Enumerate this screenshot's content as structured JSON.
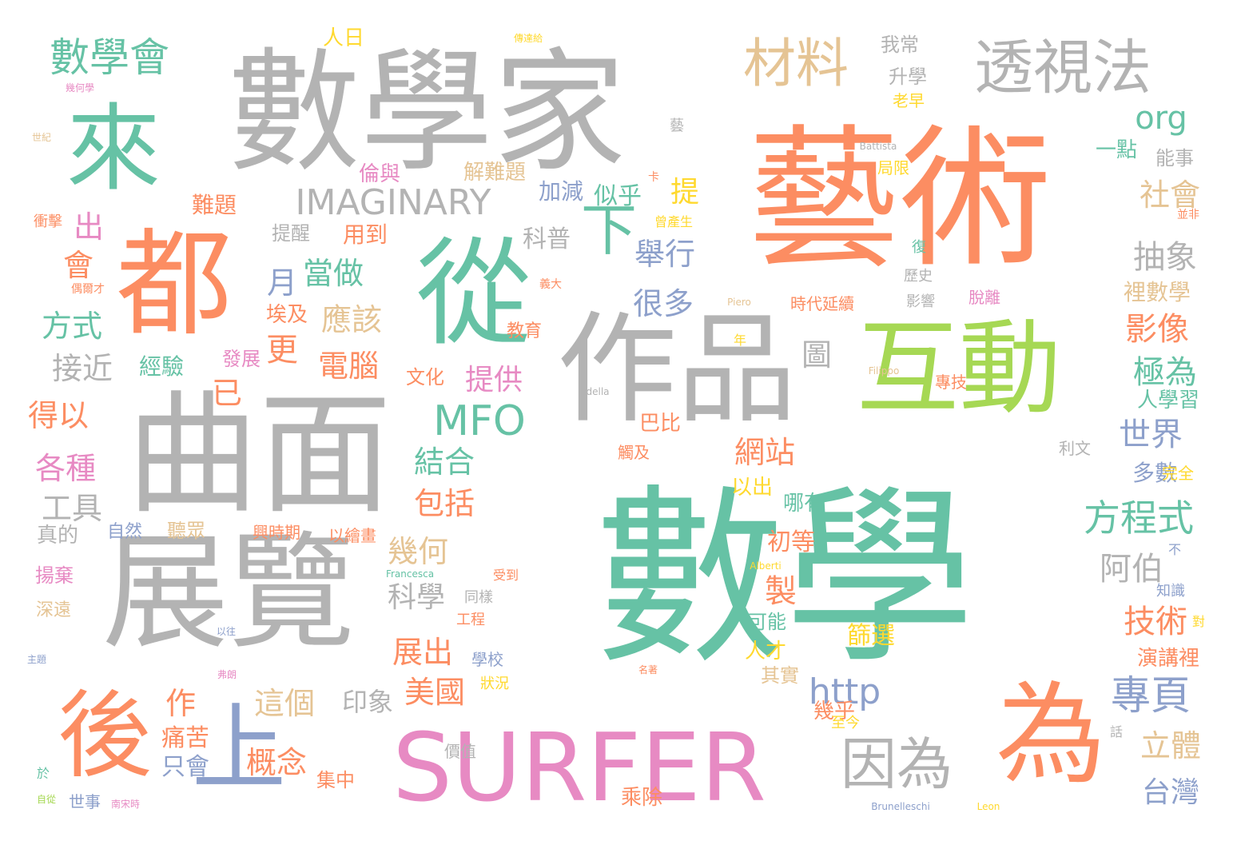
{
  "palette": {
    "teal": "#66c2a5",
    "orange": "#fc8d62",
    "blue": "#8da0cb",
    "pink": "#e78ac3",
    "green": "#a6d854",
    "yellow": "#ffd92f",
    "tan": "#e5c494",
    "gray": "#b3b3b3"
  },
  "words": [
    {
      "text": "數學",
      "color": "teal"
    },
    {
      "text": "藝術",
      "color": "orange"
    },
    {
      "text": "數學家",
      "color": "gray"
    },
    {
      "text": "曲面",
      "color": "gray"
    },
    {
      "text": "展覽",
      "color": "gray"
    },
    {
      "text": "都",
      "color": "orange"
    },
    {
      "text": "從",
      "color": "teal"
    },
    {
      "text": "來",
      "color": "teal"
    },
    {
      "text": "作品",
      "color": "gray"
    },
    {
      "text": "互動",
      "color": "green"
    },
    {
      "text": "為",
      "color": "orange"
    },
    {
      "text": "SURFER",
      "color": "pink"
    },
    {
      "text": "後",
      "color": "orange"
    },
    {
      "text": "上",
      "color": "blue"
    },
    {
      "text": "透視法",
      "color": "gray"
    },
    {
      "text": "材料",
      "color": "tan"
    },
    {
      "text": "數學會",
      "color": "teal"
    },
    {
      "text": "IMAGINARY",
      "color": "gray"
    },
    {
      "text": "MFO",
      "color": "teal"
    },
    {
      "text": "因為",
      "color": "gray"
    },
    {
      "text": "專頁",
      "color": "blue"
    },
    {
      "text": "方程式",
      "color": "teal"
    },
    {
      "text": "下",
      "color": "teal"
    },
    {
      "text": "org",
      "color": "teal"
    },
    {
      "text": "http",
      "color": "blue"
    },
    {
      "text": "舉行",
      "color": "blue"
    },
    {
      "text": "社會",
      "color": "tan"
    },
    {
      "text": "抽象",
      "color": "gray"
    },
    {
      "text": "影像",
      "color": "orange"
    },
    {
      "text": "極為",
      "color": "teal"
    },
    {
      "text": "世界",
      "color": "blue"
    },
    {
      "text": "阿伯",
      "color": "gray"
    },
    {
      "text": "技術",
      "color": "orange"
    },
    {
      "text": "立體",
      "color": "tan"
    },
    {
      "text": "台灣",
      "color": "blue"
    },
    {
      "text": "網站",
      "color": "orange"
    },
    {
      "text": "結合",
      "color": "teal"
    },
    {
      "text": "包括",
      "color": "orange"
    },
    {
      "text": "幾何",
      "color": "tan"
    },
    {
      "text": "科學",
      "color": "gray"
    },
    {
      "text": "展出",
      "color": "orange"
    },
    {
      "text": "美國",
      "color": "orange"
    },
    {
      "text": "這個",
      "color": "tan"
    },
    {
      "text": "概念",
      "color": "orange"
    },
    {
      "text": "當做",
      "color": "teal"
    },
    {
      "text": "應該",
      "color": "tan"
    },
    {
      "text": "電腦",
      "color": "orange"
    },
    {
      "text": "很多",
      "color": "blue"
    },
    {
      "text": "提供",
      "color": "pink"
    },
    {
      "text": "接近",
      "color": "gray"
    },
    {
      "text": "方式",
      "color": "teal"
    },
    {
      "text": "得以",
      "color": "orange"
    },
    {
      "text": "各種",
      "color": "pink"
    },
    {
      "text": "工具",
      "color": "gray"
    },
    {
      "text": "月",
      "color": "blue"
    },
    {
      "text": "更",
      "color": "orange"
    },
    {
      "text": "已",
      "color": "orange"
    },
    {
      "text": "出",
      "color": "pink"
    },
    {
      "text": "會",
      "color": "orange"
    },
    {
      "text": "作",
      "color": "orange"
    },
    {
      "text": "製",
      "color": "orange"
    },
    {
      "text": "提",
      "color": "yellow"
    },
    {
      "text": "圖",
      "color": "gray"
    },
    {
      "text": "痛苦",
      "color": "orange"
    },
    {
      "text": "只會",
      "color": "blue"
    },
    {
      "text": "印象",
      "color": "gray"
    },
    {
      "text": "人學習",
      "color": "teal"
    },
    {
      "text": "多數",
      "color": "blue"
    },
    {
      "text": "演講裡",
      "color": "orange"
    },
    {
      "text": "裡數學",
      "color": "tan"
    },
    {
      "text": "初等",
      "color": "orange"
    },
    {
      "text": "篩選",
      "color": "yellow"
    },
    {
      "text": "科普",
      "color": "gray"
    },
    {
      "text": "似乎",
      "color": "teal"
    },
    {
      "text": "加減",
      "color": "blue"
    },
    {
      "text": "解難題",
      "color": "tan"
    },
    {
      "text": "倫與",
      "color": "pink"
    },
    {
      "text": "難題",
      "color": "orange"
    },
    {
      "text": "用到",
      "color": "orange"
    },
    {
      "text": "提醒",
      "color": "gray"
    },
    {
      "text": "經驗",
      "color": "teal"
    },
    {
      "text": "埃及",
      "color": "orange"
    },
    {
      "text": "發展",
      "color": "pink"
    },
    {
      "text": "文化",
      "color": "orange"
    },
    {
      "text": "教育",
      "color": "orange"
    },
    {
      "text": "巴比",
      "color": "orange"
    },
    {
      "text": "以出",
      "color": "yellow"
    },
    {
      "text": "哪有",
      "color": "teal"
    },
    {
      "text": "可能",
      "color": "teal"
    },
    {
      "text": "人才",
      "color": "yellow"
    },
    {
      "text": "其實",
      "color": "tan"
    },
    {
      "text": "幾乎",
      "color": "orange"
    },
    {
      "text": "乘除",
      "color": "orange"
    },
    {
      "text": "集中",
      "color": "orange"
    },
    {
      "text": "聽眾",
      "color": "tan"
    },
    {
      "text": "以繪畫",
      "color": "orange"
    },
    {
      "text": "興時期",
      "color": "orange"
    },
    {
      "text": "自然",
      "color": "blue"
    },
    {
      "text": "真的",
      "color": "gray"
    },
    {
      "text": "揚棄",
      "color": "pink"
    },
    {
      "text": "深遠",
      "color": "tan"
    },
    {
      "text": "世事",
      "color": "blue"
    },
    {
      "text": "工程",
      "color": "orange"
    },
    {
      "text": "學校",
      "color": "blue"
    },
    {
      "text": "狀況",
      "color": "yellow"
    },
    {
      "text": "同樣",
      "color": "gray"
    },
    {
      "text": "受到",
      "color": "orange"
    },
    {
      "text": "價值",
      "color": "gray"
    },
    {
      "text": "至今",
      "color": "yellow"
    },
    {
      "text": "我常",
      "color": "gray"
    },
    {
      "text": "升學",
      "color": "gray"
    },
    {
      "text": "老早",
      "color": "yellow"
    },
    {
      "text": "一點",
      "color": "teal"
    },
    {
      "text": "能事",
      "color": "gray"
    },
    {
      "text": "局限",
      "color": "yellow"
    },
    {
      "text": "歷史",
      "color": "gray"
    },
    {
      "text": "影響",
      "color": "gray"
    },
    {
      "text": "時代延續",
      "color": "orange"
    },
    {
      "text": "脫離",
      "color": "pink"
    },
    {
      "text": "專技",
      "color": "orange"
    },
    {
      "text": "利文",
      "color": "gray"
    },
    {
      "text": "完全",
      "color": "yellow"
    },
    {
      "text": "知識",
      "color": "blue"
    },
    {
      "text": "人日",
      "color": "yellow"
    },
    {
      "text": "觸及",
      "color": "orange"
    },
    {
      "text": "年",
      "color": "yellow"
    },
    {
      "text": "Battista",
      "color": "gray"
    },
    {
      "text": "Filippo",
      "color": "tan"
    },
    {
      "text": "della",
      "color": "gray"
    },
    {
      "text": "Francesca",
      "color": "teal"
    },
    {
      "text": "Alberti",
      "color": "yellow"
    },
    {
      "text": "Brunelleschi",
      "color": "blue"
    },
    {
      "text": "Leon",
      "color": "yellow"
    },
    {
      "text": "Piero",
      "color": "tan"
    },
    {
      "text": "藝",
      "color": "gray"
    },
    {
      "text": "曾產生",
      "color": "yellow"
    },
    {
      "text": "義大",
      "color": "orange"
    },
    {
      "text": "傳達給",
      "color": "yellow"
    },
    {
      "text": "幾何學",
      "color": "pink"
    },
    {
      "text": "世紀",
      "color": "tan"
    },
    {
      "text": "衝擊",
      "color": "orange"
    },
    {
      "text": "偶爾才",
      "color": "orange"
    },
    {
      "text": "復",
      "color": "teal"
    },
    {
      "text": "不",
      "color": "blue"
    },
    {
      "text": "卡",
      "color": "orange"
    },
    {
      "text": "話",
      "color": "gray"
    },
    {
      "text": "對",
      "color": "yellow"
    },
    {
      "text": "並非",
      "color": "orange"
    },
    {
      "text": "於",
      "color": "teal"
    },
    {
      "text": "主題",
      "color": "blue"
    },
    {
      "text": "以往",
      "color": "blue"
    },
    {
      "text": "弗朗",
      "color": "pink"
    },
    {
      "text": "名著",
      "color": "orange"
    },
    {
      "text": "自從",
      "color": "green"
    },
    {
      "text": "南宋時",
      "color": "pink"
    }
  ]
}
